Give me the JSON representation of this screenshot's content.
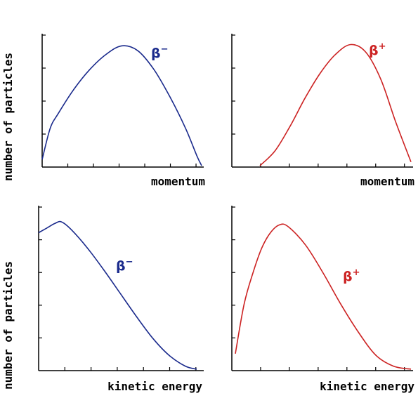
{
  "colors": {
    "beta_minus": "#1a2a8c",
    "beta_plus": "#cc2222",
    "axis": "#000000"
  },
  "y_axis_label": "number of particles",
  "chart_data": [
    {
      "type": "line",
      "xlabel": "momentum",
      "series": [
        {
          "name": "β⁻",
          "color": "#1a2a8c",
          "x": [
            0.0,
            0.05,
            0.1,
            0.2,
            0.3,
            0.4,
            0.5,
            0.6,
            0.7,
            0.8,
            0.9,
            0.97,
            1.0
          ],
          "y": [
            0.05,
            0.3,
            0.42,
            0.62,
            0.78,
            0.9,
            0.97,
            0.93,
            0.78,
            0.56,
            0.3,
            0.08,
            0.0
          ]
        }
      ],
      "curve_label": {
        "base": "β",
        "sup": "−"
      }
    },
    {
      "type": "line",
      "xlabel": "momentum",
      "series": [
        {
          "name": "β⁺",
          "color": "#cc2222",
          "x": [
            0.0,
            0.1,
            0.2,
            0.3,
            0.4,
            0.5,
            0.6,
            0.7,
            0.8,
            0.9,
            1.0
          ],
          "y": [
            0.0,
            0.12,
            0.32,
            0.55,
            0.75,
            0.9,
            0.98,
            0.92,
            0.7,
            0.35,
            0.03
          ]
        }
      ],
      "curve_label": {
        "base": "β",
        "sup": "+"
      }
    },
    {
      "type": "line",
      "xlabel": "kinetic energy",
      "series": [
        {
          "name": "β⁻",
          "color": "#1a2a8c",
          "x": [
            0.0,
            0.05,
            0.1,
            0.14,
            0.2,
            0.3,
            0.4,
            0.5,
            0.6,
            0.7,
            0.8,
            0.9,
            0.97
          ],
          "y": [
            0.88,
            0.91,
            0.94,
            0.95,
            0.9,
            0.78,
            0.64,
            0.49,
            0.34,
            0.2,
            0.09,
            0.02,
            0.0
          ]
        }
      ],
      "curve_label": {
        "base": "β",
        "sup": "−"
      }
    },
    {
      "type": "line",
      "xlabel": "kinetic energy",
      "series": [
        {
          "name": "β⁺",
          "color": "#cc2222",
          "x": [
            0.0,
            0.05,
            0.1,
            0.15,
            0.2,
            0.25,
            0.3,
            0.4,
            0.5,
            0.6,
            0.7,
            0.8,
            0.9,
            1.0
          ],
          "y": [
            0.1,
            0.42,
            0.62,
            0.78,
            0.88,
            0.93,
            0.92,
            0.8,
            0.62,
            0.42,
            0.24,
            0.09,
            0.02,
            0.0
          ]
        }
      ],
      "curve_label": {
        "base": "β",
        "sup": "+"
      }
    }
  ]
}
